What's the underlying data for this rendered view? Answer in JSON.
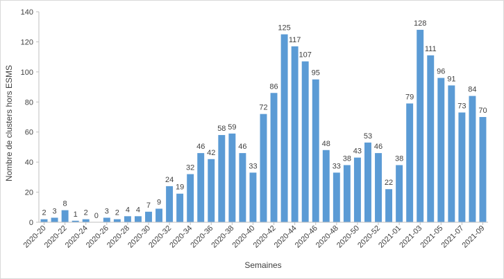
{
  "chart_data": {
    "type": "bar",
    "title": "",
    "xlabel": "Semaines",
    "ylabel": "Nombre de clusters hors ESMS",
    "ylim": [
      0,
      140
    ],
    "yticks": [
      0,
      20,
      40,
      60,
      80,
      100,
      120,
      140
    ],
    "grid": false,
    "bar_color": "#5B9BD5",
    "categories": [
      "2020-20",
      "2020-21",
      "2020-22",
      "2020-23",
      "2020-24",
      "2020-25",
      "2020-26",
      "2020-27",
      "2020-28",
      "2020-29",
      "2020-30",
      "2020-31",
      "2020-32",
      "2020-33",
      "2020-34",
      "2020-35",
      "2020-36",
      "2020-37",
      "2020-38",
      "2020-39",
      "2020-40",
      "2020-41",
      "2020-42",
      "2020-43",
      "2020-44",
      "2020-45",
      "2020-46",
      "2020-47",
      "2020-48",
      "2020-49",
      "2020-50",
      "2020-51",
      "2020-52",
      "2020-53",
      "2021-01",
      "2021-02",
      "2021-03",
      "2021-04",
      "2021-05",
      "2021-06",
      "2021-07",
      "2021-08",
      "2021-09"
    ],
    "values": [
      2,
      3,
      8,
      1,
      2,
      0,
      3,
      2,
      4,
      4,
      7,
      9,
      24,
      19,
      32,
      46,
      42,
      58,
      59,
      46,
      33,
      72,
      86,
      125,
      117,
      107,
      95,
      48,
      33,
      38,
      43,
      53,
      46,
      22,
      38,
      79,
      128,
      111,
      96,
      91,
      73,
      84,
      70
    ],
    "visible_x_tick_labels": [
      "2020-20",
      "2020-22",
      "2020-24",
      "2020-26",
      "2020-28",
      "2020-30",
      "2020-32",
      "2020-34",
      "2020-36",
      "2020-38",
      "2020-40",
      "2020-42",
      "2020-44",
      "2020-46",
      "2020-48",
      "2020-50",
      "2020-52",
      "2021-01",
      "2021-03",
      "2021-05",
      "2021-07",
      "2021-09"
    ]
  }
}
